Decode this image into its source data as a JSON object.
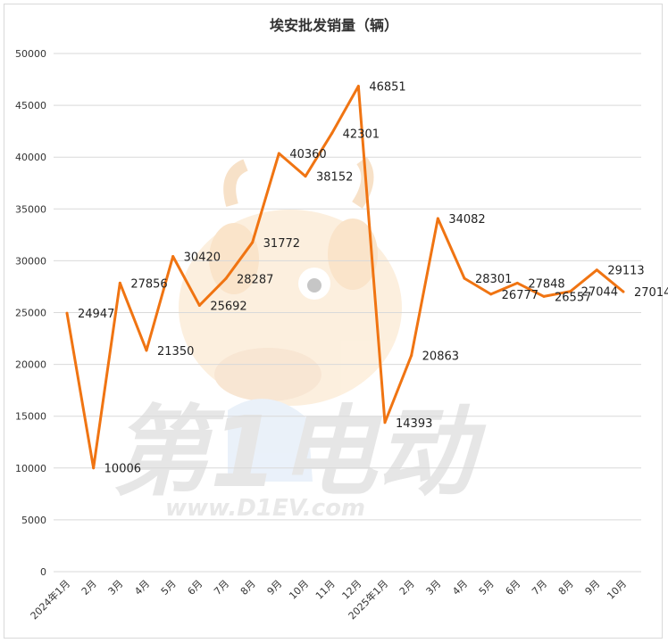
{
  "chart_data": {
    "type": "line",
    "title": "埃安批发销量（辆）",
    "xlabel": "",
    "ylabel": "",
    "ylim": [
      0,
      50000
    ],
    "yticks": [
      0,
      5000,
      10000,
      15000,
      20000,
      25000,
      30000,
      35000,
      40000,
      45000,
      50000
    ],
    "grid": true,
    "legend": "none",
    "categories": [
      "2024年1月",
      "2月",
      "3月",
      "4月",
      "5月",
      "6月",
      "7月",
      "8月",
      "9月",
      "10月",
      "11月",
      "12月",
      "2025年1月",
      "2月",
      "3月",
      "4月",
      "5月",
      "6月",
      "7月",
      "8月",
      "9月",
      "10月"
    ],
    "series": [
      {
        "color": "#f07412",
        "values": [
          24947,
          10006,
          27856,
          21350,
          30420,
          25692,
          28287,
          31772,
          40360,
          38152,
          42301,
          46851,
          14393,
          20863,
          34082,
          28301,
          26777,
          27848,
          26557,
          27044,
          29113,
          27014
        ]
      }
    ]
  },
  "watermark": {
    "brand_text": "第1电动",
    "url_text": "www.D1EV.com"
  }
}
